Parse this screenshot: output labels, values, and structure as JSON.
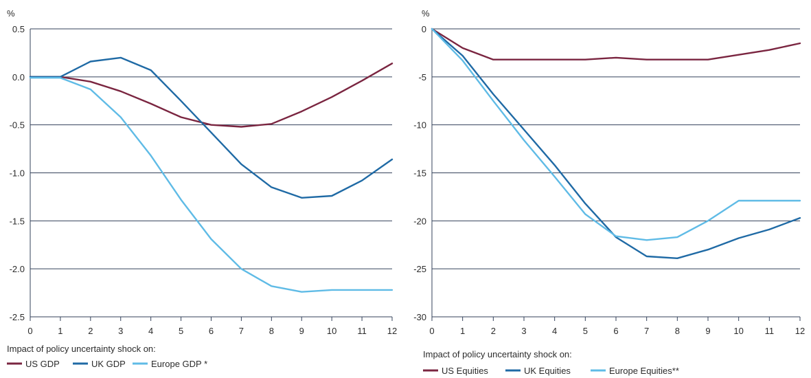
{
  "chart_data": [
    {
      "type": "line",
      "ylabel": "%",
      "ylim": [
        -2.5,
        0.5
      ],
      "yticks": [
        "0.5",
        "0.0",
        "-0.5",
        "-1.0",
        "-1.5",
        "-2.0",
        "-2.5"
      ],
      "ytick_values": [
        0.5,
        0.0,
        -0.5,
        -1.0,
        -1.5,
        -2.0,
        -2.5
      ],
      "x": [
        0,
        1,
        2,
        3,
        4,
        5,
        6,
        7,
        8,
        9,
        10,
        11,
        12
      ],
      "xticks": [
        "0",
        "1",
        "2",
        "3",
        "4",
        "5",
        "6",
        "7",
        "8",
        "9",
        "10",
        "11",
        "12"
      ],
      "grid": "horizontal",
      "legend_title": "Impact of policy uncertainty shock on:",
      "legend_position": "bottom",
      "series": [
        {
          "name": "US GDP",
          "color": "#7a2540",
          "values": [
            0.0,
            0.0,
            -0.05,
            -0.15,
            -0.28,
            -0.42,
            -0.5,
            -0.52,
            -0.49,
            -0.36,
            -0.21,
            -0.04,
            0.14
          ]
        },
        {
          "name": "UK GDP",
          "color": "#1f6aa5",
          "values": [
            0.0,
            0.0,
            0.16,
            0.2,
            0.07,
            -0.25,
            -0.58,
            -0.91,
            -1.15,
            -1.26,
            -1.24,
            -1.08,
            -0.86
          ]
        },
        {
          "name": "Europe GDP *",
          "color": "#5fbbe6",
          "values": [
            -0.01,
            -0.01,
            -0.13,
            -0.42,
            -0.82,
            -1.28,
            -1.69,
            -2.0,
            -2.18,
            -2.24,
            -2.22,
            -2.22,
            -2.22
          ]
        }
      ]
    },
    {
      "type": "line",
      "ylabel": "%",
      "ylim": [
        -30,
        0
      ],
      "yticks": [
        "0",
        "-5",
        "-10",
        "-15",
        "-20",
        "-25",
        "-30"
      ],
      "ytick_values": [
        0,
        -5,
        -10,
        -15,
        -20,
        -25,
        -30
      ],
      "x": [
        0,
        1,
        2,
        3,
        4,
        5,
        6,
        7,
        8,
        9,
        10,
        11,
        12
      ],
      "xticks": [
        "0",
        "1",
        "2",
        "3",
        "4",
        "5",
        "6",
        "7",
        "8",
        "9",
        "10",
        "11",
        "12"
      ],
      "grid": "horizontal",
      "legend_title": "Impact of policy uncertainty shock on:",
      "legend_position": "bottom",
      "series": [
        {
          "name": "US Equities",
          "color": "#7a2540",
          "values": [
            0,
            -2.0,
            -3.2,
            -3.2,
            -3.2,
            -3.2,
            -3.0,
            -3.2,
            -3.2,
            -3.2,
            -2.7,
            -2.2,
            -1.5
          ]
        },
        {
          "name": "UK Equities",
          "color": "#1f6aa5",
          "values": [
            0,
            -2.8,
            -6.8,
            -10.5,
            -14.2,
            -18.2,
            -21.7,
            -23.7,
            -23.9,
            -23.0,
            -21.8,
            -20.9,
            -19.7
          ]
        },
        {
          "name": "Europe Equities**",
          "color": "#5fbbe6",
          "values": [
            0,
            -3.3,
            -7.5,
            -11.6,
            -15.4,
            -19.3,
            -21.6,
            -22.0,
            -21.7,
            -20.0,
            -17.9,
            -17.9,
            -17.9
          ]
        }
      ]
    }
  ]
}
